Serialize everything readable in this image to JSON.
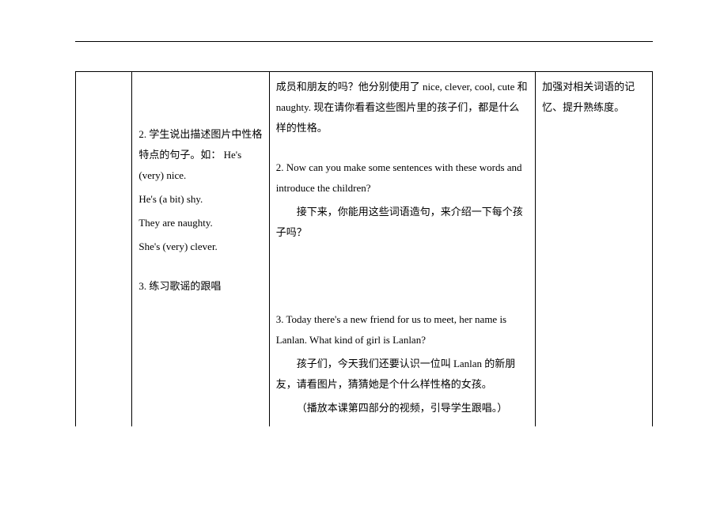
{
  "table": {
    "col2": {
      "p1": "2. 学生说出描述图片中性格特点的句子。如： He's (very) nice.",
      "p2": "He's (a bit) shy.",
      "p3": "They are naughty.",
      "p4": "She's (very) clever.",
      "p5": "3. 练习歌谣的跟唱"
    },
    "col3": {
      "p1": "成员和朋友的吗？他分别使用了 nice, clever, cool, cute 和 naughty. 现在请你看看这些图片里的孩子们，都是什么样的性格。",
      "p2": "2. Now can you make some sentences with  these words and introduce the children?",
      "p2b": "接下来，你能用这些词语造句，来介绍一下每个孩子吗？",
      "p3": "3. Today there's a new friend for us to meet, her name is Lanlan. What kind of girl is Lanlan?",
      "p3b": "孩子们，今天我们还要认识一位叫 Lanlan 的新朋友，请看图片，猜猜她是个什么样性格的女孩。",
      "p3c": "（播放本课第四部分的视频，引导学生跟唱。）"
    },
    "col4": {
      "p1": "加强对相关词语的记忆、提升熟练度。"
    }
  }
}
